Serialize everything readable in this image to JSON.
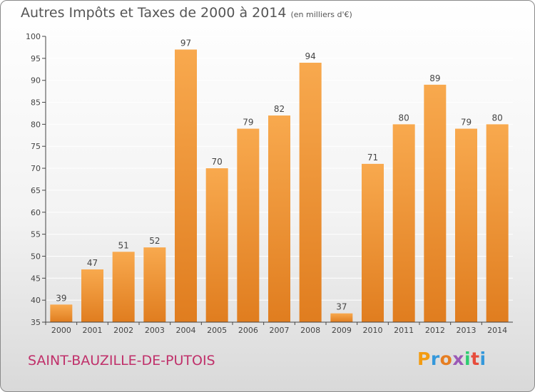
{
  "title": "Autres Impôts et Taxes de 2000 à 2014",
  "unit": "(en milliers d'€)",
  "commune": "SAINT-BAUZILLE-DE-PUTOIS",
  "logo": {
    "letters": [
      "P",
      "r",
      "o",
      "x",
      "i",
      "t",
      "i"
    ],
    "colors": [
      "#f39c12",
      "#3498db",
      "#e67e22",
      "#9b59b6",
      "#2ecc71",
      "#e74c3c",
      "#3498db"
    ]
  },
  "colors": {
    "bar_top": "#f8a94e",
    "bar_bottom": "#e07d1f",
    "axis": "#444444",
    "grid": "#ffffff",
    "commune": "#c0306a"
  },
  "chart_data": {
    "type": "bar",
    "title": "Autres Impôts et Taxes de 2000 à 2014",
    "subtitle": "(en milliers d'€)",
    "xlabel": "",
    "ylabel": "",
    "categories": [
      "2000",
      "2001",
      "2002",
      "2003",
      "2004",
      "2005",
      "2006",
      "2007",
      "2008",
      "2009",
      "2010",
      "2011",
      "2012",
      "2013",
      "2014"
    ],
    "values": [
      39,
      47,
      51,
      52,
      97,
      70,
      79,
      82,
      94,
      37,
      71,
      80,
      89,
      79,
      80
    ],
    "ylim": [
      35,
      100
    ],
    "yticks": [
      35,
      40,
      45,
      50,
      55,
      60,
      65,
      70,
      75,
      80,
      85,
      90,
      95,
      100
    ],
    "grid": true,
    "legend": "none"
  }
}
